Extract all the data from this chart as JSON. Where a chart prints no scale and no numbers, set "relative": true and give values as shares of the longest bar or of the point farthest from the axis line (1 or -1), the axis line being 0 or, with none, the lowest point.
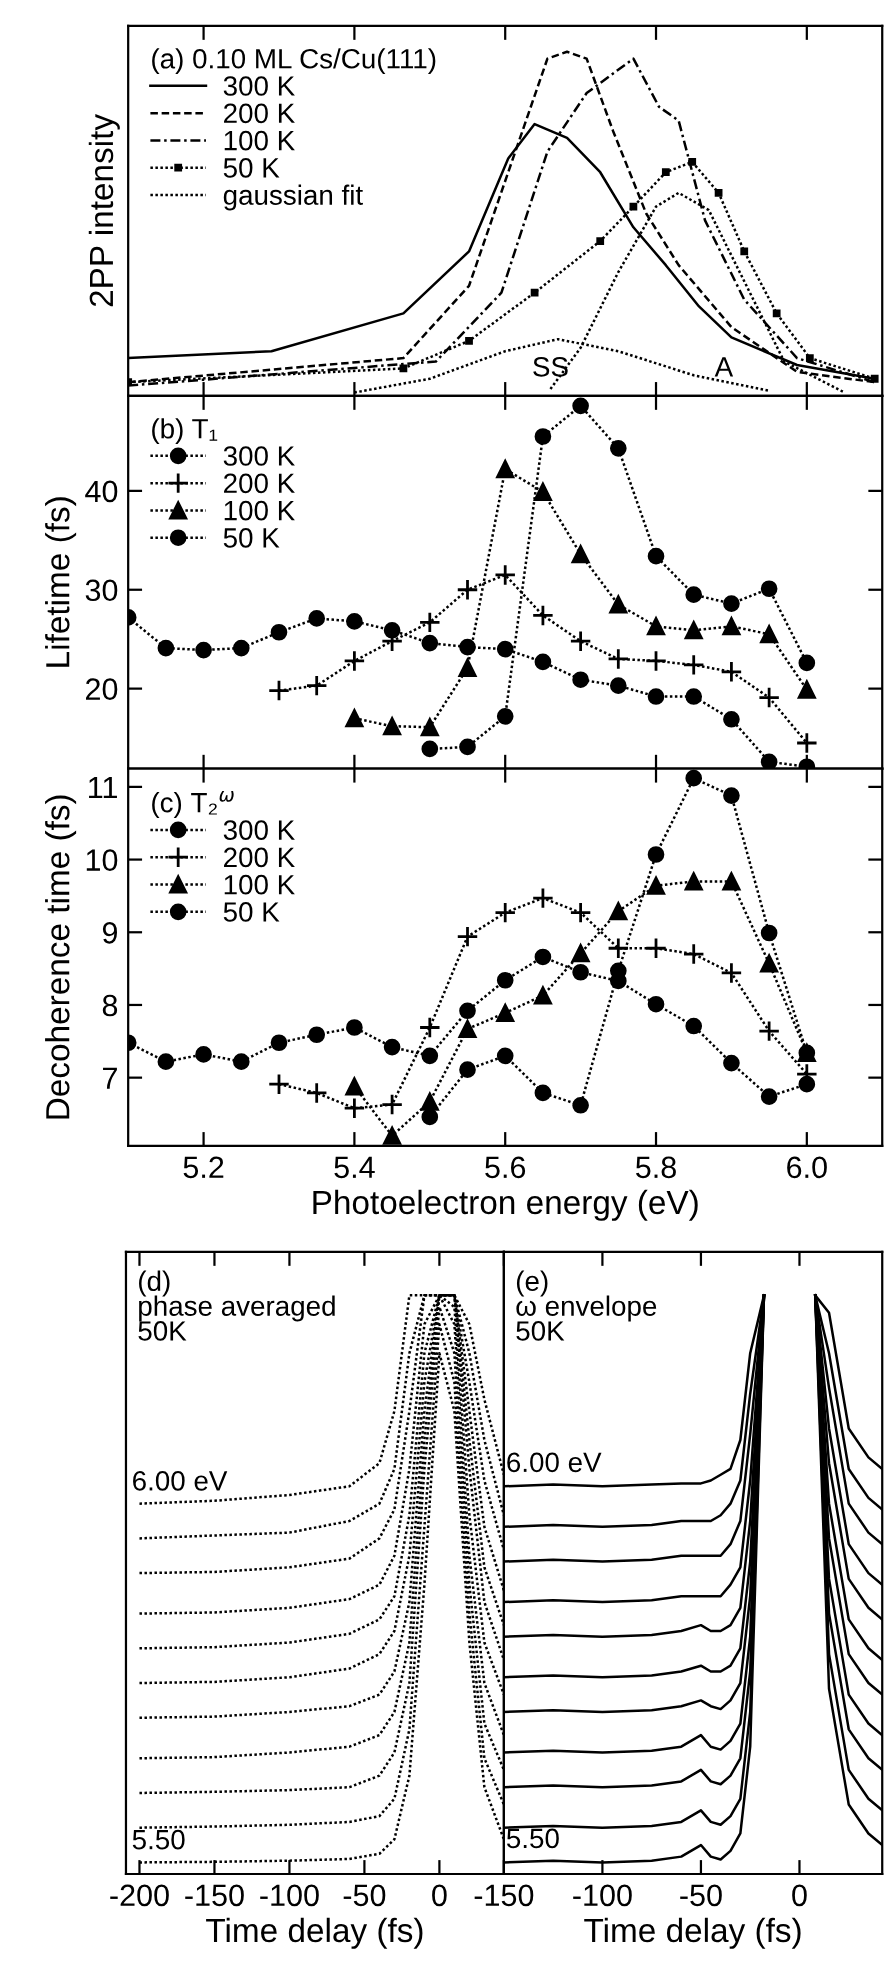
{
  "chart_data": [
    {
      "type": "line",
      "relative": true,
      "ylabel": "2PP intensity",
      "legend": "top left",
      "legend_title": "(a) 0.10 ML Cs/Cu(111)",
      "xlim": [
        5.1,
        6.1
      ],
      "xticks": [
        5.2,
        5.4,
        5.6,
        5.8,
        6.0
      ],
      "tick_labels": false,
      "annotations": [
        {
          "text": "SS",
          "x": 5.66,
          "y": 0.04
        },
        {
          "text": "A",
          "x": 5.89,
          "y": 0.04
        }
      ],
      "series": [
        {
          "name": "300 K",
          "color": "#000000",
          "line_style": "solid",
          "x": [
            5.1,
            5.29,
            5.465,
            5.552,
            5.604,
            5.639,
            5.682,
            5.726,
            5.77,
            5.813,
            5.857,
            5.9,
            5.987,
            6.09
          ],
          "values": [
            0.11,
            0.13,
            0.24,
            0.42,
            0.69,
            0.79,
            0.75,
            0.65,
            0.49,
            0.38,
            0.26,
            0.17,
            0.09,
            0.05
          ]
        },
        {
          "name": "200 K",
          "color": "#000000",
          "line_style": "dashed",
          "x": [
            5.1,
            5.465,
            5.552,
            5.604,
            5.656,
            5.682,
            5.708,
            5.743,
            5.787,
            5.83,
            5.9,
            5.987,
            6.09
          ],
          "values": [
            0.04,
            0.11,
            0.32,
            0.65,
            0.98,
            1.0,
            0.98,
            0.77,
            0.53,
            0.38,
            0.2,
            0.07,
            0.04
          ]
        },
        {
          "name": "100 K",
          "color": "#000000",
          "line_style": "dashdot",
          "x": [
            5.1,
            5.508,
            5.595,
            5.656,
            5.708,
            5.77,
            5.804,
            5.83,
            5.865,
            5.917,
            5.987,
            6.09
          ],
          "values": [
            0.03,
            0.1,
            0.3,
            0.71,
            0.88,
            0.98,
            0.84,
            0.8,
            0.51,
            0.28,
            0.11,
            0.04
          ]
        },
        {
          "name": "50 K",
          "color": "#000000",
          "line_style": "dotted",
          "marker": "square",
          "x": [
            5.1,
            5.465,
            5.552,
            5.639,
            5.726,
            5.77,
            5.813,
            5.848,
            5.883,
            5.917,
            5.96,
            6.004,
            6.09
          ],
          "values": [
            0.04,
            0.08,
            0.16,
            0.3,
            0.45,
            0.55,
            0.65,
            0.68,
            0.59,
            0.42,
            0.24,
            0.11,
            0.05
          ]
        },
        {
          "name": "gaussian fit",
          "color": "#000000",
          "line_style": "dotted",
          "x": [
            5.4,
            5.5,
            5.6,
            5.67,
            5.75,
            5.85,
            5.95
          ],
          "values": [
            0.01,
            0.05,
            0.13,
            0.165,
            0.13,
            0.06,
            0.015
          ]
        },
        {
          "color": "#000000",
          "line_style": "dotted",
          "x": [
            5.66,
            5.7,
            5.75,
            5.8,
            5.83,
            5.87,
            5.92,
            5.97,
            6.05
          ],
          "values": [
            0.02,
            0.14,
            0.36,
            0.55,
            0.59,
            0.54,
            0.32,
            0.1,
            0.01
          ]
        }
      ]
    },
    {
      "type": "line",
      "ylabel": "Lifetime (fs)",
      "legend": "top left",
      "legend_title": "(b) T₁",
      "xlim": [
        5.1,
        6.1
      ],
      "xticks": [
        5.2,
        5.4,
        5.6,
        5.8,
        6.0
      ],
      "ylim": [
        11.9,
        49.6
      ],
      "yticks": [
        20,
        30,
        40
      ],
      "tick_labels": "y",
      "line_style": "dotted",
      "series": [
        {
          "name": "300 K",
          "color": "#000000",
          "marker": "circle",
          "x": [
            5.1,
            5.15,
            5.2,
            5.25,
            5.3,
            5.35,
            5.4,
            5.45,
            5.5,
            5.55,
            5.6,
            5.65,
            5.7,
            5.75,
            5.8,
            5.85,
            5.9,
            5.95,
            6.0
          ],
          "values": [
            27.2,
            24.1,
            23.9,
            24.1,
            25.7,
            27.1,
            26.8,
            25.9,
            24.6,
            24.2,
            24.0,
            22.7,
            20.9,
            20.3,
            19.2,
            19.2,
            16.9,
            12.6,
            12.1
          ]
        },
        {
          "name": "200 K",
          "color": "#000000",
          "marker": "cross",
          "x": [
            5.3,
            5.35,
            5.4,
            5.45,
            5.5,
            5.55,
            5.6,
            5.65,
            5.7,
            5.75,
            5.8,
            5.85,
            5.9,
            5.95,
            6.0
          ],
          "values": [
            19.8,
            20.3,
            22.8,
            24.8,
            26.7,
            30.0,
            31.5,
            27.4,
            24.8,
            23.0,
            22.8,
            22.4,
            21.7,
            19.1,
            14.5
          ]
        },
        {
          "name": "100 K",
          "color": "#000000",
          "marker": "triangle",
          "x": [
            5.4,
            5.45,
            5.5,
            5.55,
            5.6,
            5.65,
            5.7,
            5.75,
            5.8,
            5.85,
            5.9,
            5.95,
            6.0
          ],
          "values": [
            17.0,
            16.2,
            16.1,
            22.1,
            42.2,
            39.9,
            33.6,
            28.5,
            26.3,
            25.9,
            26.3,
            25.5,
            19.9
          ]
        },
        {
          "name": "50 K",
          "color": "#000000",
          "marker": "circle",
          "x": [
            5.5,
            5.55,
            5.6,
            5.65,
            5.7,
            5.75,
            5.8,
            5.85,
            5.9,
            5.95,
            6.0
          ],
          "values": [
            13.9,
            14.1,
            17.2,
            45.5,
            48.6,
            44.3,
            33.4,
            29.5,
            28.6,
            30.1,
            22.6
          ]
        }
      ]
    },
    {
      "type": "line",
      "ylabel": "Decoherence time (fs)",
      "xlabel": "Photoelectron energy (eV)",
      "legend": "top left",
      "legend_title": "(c) T₂$^{ω}$",
      "xlim": [
        5.1,
        6.1
      ],
      "xticks": [
        5.2,
        5.4,
        5.6,
        5.8,
        {
          "value": 6,
          "label": "6.0"
        }
      ],
      "ylim": [
        6.06,
        11.25
      ],
      "yticks": [
        7,
        8,
        9,
        10,
        11
      ],
      "line_style": "dotted",
      "series": [
        {
          "name": "300 K",
          "color": "#000000",
          "marker": "circle",
          "x": [
            5.1,
            5.15,
            5.2,
            5.25,
            5.3,
            5.35,
            5.4,
            5.45,
            5.5,
            5.55,
            5.6,
            5.65,
            5.7,
            5.75,
            5.8,
            5.85,
            5.9,
            5.95,
            6.0
          ],
          "values": [
            7.48,
            7.22,
            7.32,
            7.22,
            7.48,
            7.59,
            7.69,
            7.42,
            7.3,
            7.92,
            8.34,
            8.66,
            8.45,
            8.33,
            8.01,
            7.71,
            7.2,
            6.74,
            6.91
          ]
        },
        {
          "name": "200 K",
          "color": "#000000",
          "marker": "cross",
          "x": [
            5.3,
            5.35,
            5.4,
            5.45,
            5.5,
            5.55,
            5.6,
            5.65,
            5.7,
            5.75,
            5.8,
            5.85,
            5.9,
            5.95,
            6.0
          ],
          "values": [
            6.91,
            6.79,
            6.58,
            6.63,
            7.69,
            8.94,
            9.27,
            9.47,
            9.27,
            8.78,
            8.78,
            8.7,
            8.44,
            7.64,
            7.05
          ]
        },
        {
          "name": "100 K",
          "color": "#000000",
          "marker": "triangle",
          "x": [
            5.4,
            5.45,
            5.5,
            5.55,
            5.6,
            5.65,
            5.7,
            5.75,
            5.8,
            5.85,
            5.9,
            5.95,
            6.0
          ],
          "values": [
            6.88,
            6.2,
            6.67,
            7.67,
            7.89,
            8.13,
            8.71,
            9.29,
            9.64,
            9.7,
            9.7,
            8.57,
            7.34
          ]
        },
        {
          "name": "50 K",
          "color": "#000000",
          "marker": "circle",
          "x": [
            5.5,
            5.55,
            5.6,
            5.65,
            5.7,
            5.75,
            5.8,
            5.85,
            5.9,
            5.95,
            6.0
          ],
          "values": [
            6.46,
            7.11,
            7.3,
            6.79,
            6.62,
            8.47,
            10.07,
            11.12,
            10.88,
            8.99,
            7.34
          ]
        }
      ]
    },
    {
      "type": "line",
      "relative": true,
      "title": "(d)\nphase averaged\n50K",
      "xlabel": "Time delay (fs)",
      "xlim": [
        -209,
        43
      ],
      "xticks": [
        -200,
        -150,
        -100,
        -50,
        0
      ],
      "tick_labels": "x",
      "line_style": "dotted",
      "annotations": [
        "6.00 eV",
        "5.50"
      ],
      "x": [
        -200,
        -150,
        -100,
        -60,
        -40,
        -30,
        -20,
        -10,
        0,
        10,
        20,
        30,
        43
      ],
      "series": [
        {
          "color": "#000000",
          "values": [
            0.02,
            0.021,
            0.023,
            0.026,
            0.035,
            0.06,
            0.17,
            0.5,
            0.9,
            0.8,
            0.4,
            0.15,
            0.06
          ]
        },
        {
          "color": "#000000",
          "values": [
            0.08,
            0.082,
            0.085,
            0.09,
            0.1,
            0.13,
            0.25,
            0.6,
            0.95,
            0.85,
            0.45,
            0.2,
            0.12
          ]
        },
        {
          "color": "#000000",
          "values": [
            0.14,
            0.142,
            0.145,
            0.15,
            0.17,
            0.21,
            0.33,
            0.7,
            0.98,
            0.9,
            0.5,
            0.26,
            0.18
          ]
        },
        {
          "color": "#000000",
          "values": [
            0.2,
            0.202,
            0.21,
            0.22,
            0.24,
            0.28,
            0.4,
            0.75,
            1,
            0.95,
            0.55,
            0.33,
            0.24
          ]
        },
        {
          "color": "#000000",
          "values": [
            0.27,
            0.272,
            0.28,
            0.29,
            0.31,
            0.35,
            0.47,
            0.8,
            1,
            0.98,
            0.62,
            0.4,
            0.31
          ]
        },
        {
          "color": "#000000",
          "values": [
            0.33,
            0.332,
            0.34,
            0.355,
            0.38,
            0.42,
            0.55,
            0.85,
            1,
            1,
            0.7,
            0.47,
            0.37
          ]
        },
        {
          "color": "#000000",
          "values": [
            0.39,
            0.392,
            0.4,
            0.415,
            0.44,
            0.48,
            0.62,
            0.9,
            1,
            1,
            0.75,
            0.53,
            0.43
          ]
        },
        {
          "color": "#000000",
          "values": [
            0.45,
            0.452,
            0.46,
            0.475,
            0.5,
            0.55,
            0.7,
            0.95,
            1,
            1,
            0.8,
            0.6,
            0.49
          ]
        },
        {
          "color": "#000000",
          "values": [
            0.52,
            0.522,
            0.53,
            0.545,
            0.58,
            0.63,
            0.8,
            1,
            1,
            1,
            0.85,
            0.68,
            0.56
          ]
        },
        {
          "color": "#000000",
          "values": [
            0.58,
            0.585,
            0.59,
            0.61,
            0.64,
            0.7,
            0.9,
            1,
            1,
            1,
            0.9,
            0.75,
            0.62
          ]
        },
        {
          "color": "#000000",
          "values": [
            0.64,
            0.645,
            0.655,
            0.67,
            0.71,
            0.8,
            1,
            1,
            1,
            1,
            0.95,
            0.82,
            0.69
          ]
        }
      ]
    },
    {
      "type": "line",
      "relative": true,
      "title": "(e)\nω envelope\n50K",
      "xlabel": "Time delay (fs)",
      "xlim": [
        -150,
        42
      ],
      "xticks": [
        -150,
        -100,
        -50,
        0
      ],
      "tick_labels": "x",
      "line_style": "solid",
      "annotations": [
        {
          "text": "6.00 eV",
          "x": -149,
          "y": 0.685
        },
        {
          "text": "5.50",
          "x": -149,
          "y": 0.035
        }
      ],
      "x": [
        -150,
        -125,
        -100,
        -75,
        -60,
        -50,
        -45,
        -40,
        -35,
        -30,
        -25,
        -18,
        0,
        8,
        15,
        25,
        35,
        42
      ],
      "series": [
        {
          "color": "#000000",
          "values": [
            0.02,
            0.023,
            0.02,
            0.023,
            0.03,
            0.05,
            0.03,
            0.025,
            0.04,
            0.07,
            0.22,
            1,
            null,
            1,
            0.32,
            0.12,
            0.07,
            0.05
          ]
        },
        {
          "color": "#000000",
          "values": [
            0.08,
            0.083,
            0.08,
            0.083,
            0.09,
            0.11,
            0.09,
            0.085,
            0.1,
            0.13,
            0.28,
            1,
            null,
            1,
            0.38,
            0.18,
            0.13,
            0.11
          ]
        },
        {
          "color": "#000000",
          "values": [
            0.15,
            0.153,
            0.15,
            0.153,
            0.16,
            0.18,
            0.16,
            0.155,
            0.17,
            0.2,
            0.35,
            1,
            null,
            1,
            0.45,
            0.25,
            0.2,
            0.18
          ]
        },
        {
          "color": "#000000",
          "values": [
            0.21,
            0.213,
            0.21,
            0.213,
            0.22,
            0.24,
            0.22,
            0.215,
            0.23,
            0.26,
            0.41,
            1,
            null,
            1,
            0.51,
            0.31,
            0.26,
            0.24
          ]
        },
        {
          "color": "#000000",
          "values": [
            0.28,
            0.283,
            0.28,
            0.283,
            0.29,
            0.3,
            0.29,
            0.285,
            0.3,
            0.33,
            0.48,
            1,
            null,
            1,
            0.58,
            0.38,
            0.33,
            0.31
          ]
        },
        {
          "color": "#000000",
          "values": [
            0.34,
            0.343,
            0.34,
            0.343,
            0.35,
            0.36,
            0.35,
            0.35,
            0.36,
            0.39,
            0.54,
            1,
            null,
            1,
            0.64,
            0.44,
            0.39,
            0.37
          ]
        },
        {
          "color": "#000000",
          "values": [
            0.41,
            0.413,
            0.41,
            0.413,
            0.42,
            0.43,
            0.42,
            0.42,
            0.43,
            0.46,
            0.61,
            1,
            null,
            1,
            0.71,
            0.51,
            0.46,
            0.44
          ]
        },
        {
          "color": "#000000",
          "values": [
            0.47,
            0.473,
            0.47,
            0.473,
            0.48,
            0.48,
            0.48,
            0.48,
            0.5,
            0.53,
            0.68,
            1,
            null,
            1,
            0.77,
            0.57,
            0.52,
            0.5
          ]
        },
        {
          "color": "#000000",
          "values": [
            0.54,
            0.543,
            0.54,
            0.543,
            0.55,
            0.55,
            0.55,
            0.55,
            0.57,
            0.61,
            0.76,
            1,
            null,
            1,
            0.84,
            0.64,
            0.59,
            0.57
          ]
        },
        {
          "color": "#000000",
          "values": [
            0.6,
            0.603,
            0.6,
            0.603,
            0.61,
            0.61,
            0.61,
            0.62,
            0.64,
            0.68,
            0.83,
            1,
            null,
            1,
            0.9,
            0.7,
            0.65,
            0.63
          ]
        },
        {
          "color": "#000000",
          "values": [
            0.67,
            0.673,
            0.67,
            0.673,
            0.675,
            0.675,
            0.68,
            0.69,
            0.7,
            0.75,
            0.9,
            1,
            null,
            1,
            0.97,
            0.77,
            0.72,
            0.7
          ]
        }
      ]
    }
  ]
}
